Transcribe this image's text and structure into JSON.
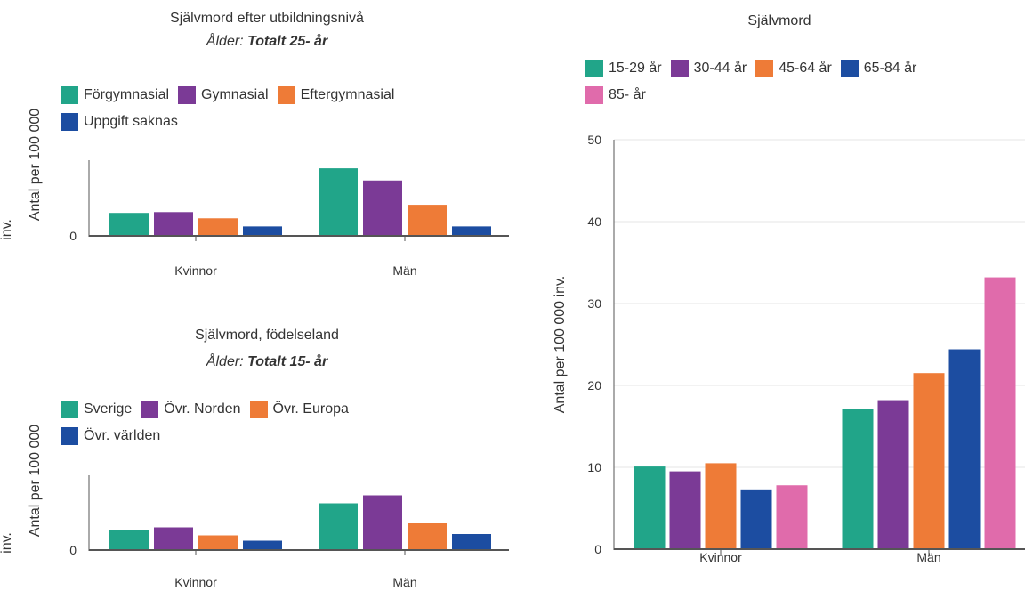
{
  "colors": {
    "teal": "#21a589",
    "purple": "#7b3a96",
    "orange": "#ee7b37",
    "blue": "#1c4da1",
    "pink": "#e06bab",
    "axis": "#555555",
    "grid": "#e6e6e6"
  },
  "chart_data": [
    {
      "type": "bar",
      "title": "Självmord efter utbildningsnivå",
      "subtitle_prefix": "Ålder:",
      "subtitle_value": "Totalt 25- år",
      "ylabel": "Antal per 100 000",
      "ylabel_overflow": "inv.",
      "categories": [
        "Kvinnor",
        "Män"
      ],
      "y_ticks": [
        "0"
      ],
      "ylim": [
        0,
        28
      ],
      "legend_rows": [
        [
          "Förgymnasial",
          "Gymnasial",
          "Eftergymnasial"
        ],
        [
          "Uppgift saknas"
        ]
      ],
      "series": [
        {
          "name": "Förgymnasial",
          "color": "teal",
          "values": [
            8.5,
            25
          ]
        },
        {
          "name": "Gymnasial",
          "color": "purple",
          "values": [
            8.8,
            20.5
          ]
        },
        {
          "name": "Eftergymnasial",
          "color": "orange",
          "values": [
            6.5,
            11.5
          ]
        },
        {
          "name": "Uppgift saknas",
          "color": "blue",
          "values": [
            3.5,
            3.5
          ]
        }
      ]
    },
    {
      "type": "bar",
      "title": "Självmord, födelseland",
      "subtitle_prefix": "Ålder:",
      "subtitle_value": "Totalt 15- år",
      "ylabel": "Antal per 100 000",
      "ylabel_overflow": "inv.",
      "categories": [
        "Kvinnor",
        "Män"
      ],
      "y_ticks": [
        "0"
      ],
      "ylim": [
        0,
        28
      ],
      "legend_rows": [
        [
          "Sverige",
          "Övr. Norden",
          "Övr. Europa"
        ],
        [
          "Övr. världen"
        ]
      ],
      "series": [
        {
          "name": "Sverige",
          "color": "teal",
          "values": [
            7.5,
            17.5
          ]
        },
        {
          "name": "Övr. Norden",
          "color": "purple",
          "values": [
            8.5,
            20.5
          ]
        },
        {
          "name": "Övr. Europa",
          "color": "orange",
          "values": [
            5.5,
            10
          ]
        },
        {
          "name": "Övr. världen",
          "color": "blue",
          "values": [
            3.5,
            6
          ]
        }
      ]
    },
    {
      "type": "bar",
      "title": "Självmord",
      "ylabel": "Antal per 100 000 inv.",
      "categories": [
        "Kvinnor",
        "Män"
      ],
      "y_ticks": [
        "0",
        "10",
        "20",
        "30",
        "40",
        "50"
      ],
      "ylim": [
        0,
        50
      ],
      "grid": true,
      "legend_rows": [
        [
          "15-29 år",
          "30-44 år",
          "45-64 år",
          "65-84 år"
        ],
        [
          "85- år"
        ]
      ],
      "series": [
        {
          "name": "15-29 år",
          "color": "teal",
          "values": [
            10.1,
            17.1
          ]
        },
        {
          "name": "30-44 år",
          "color": "purple",
          "values": [
            9.5,
            18.2
          ]
        },
        {
          "name": "45-64 år",
          "color": "orange",
          "values": [
            10.5,
            21.5
          ]
        },
        {
          "name": "65-84 år",
          "color": "blue",
          "values": [
            7.3,
            24.4
          ]
        },
        {
          "name": "85- år",
          "color": "pink",
          "values": [
            7.8,
            33.2
          ]
        }
      ]
    }
  ]
}
